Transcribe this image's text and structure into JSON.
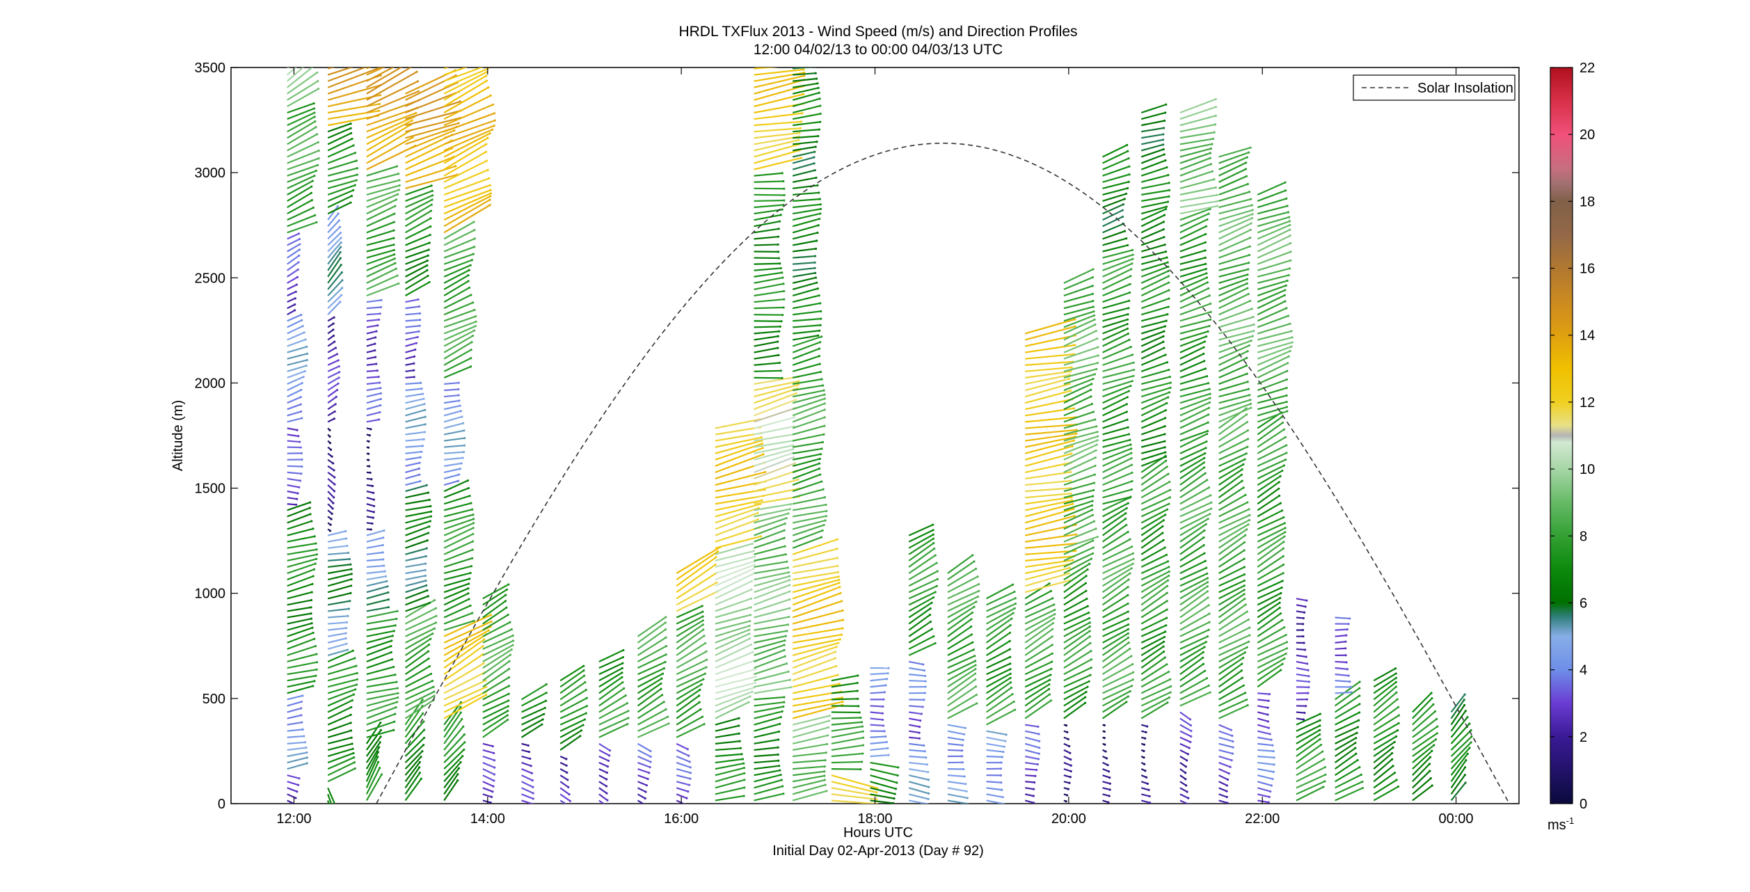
{
  "chart_data": {
    "type": "vector-profile",
    "title": "HRDL TXFlux 2013 - Wind Speed (m/s) and Direction Profiles",
    "subtitle": "12:00 04/02/13 to 00:00 04/03/13  UTC",
    "xlabel": "Hours UTC",
    "ylabel": "Altitude (m)",
    "footer": "Initial Day 02-Apr-2013 (Day # 92)",
    "xlim": [
      11.35,
      24.65
    ],
    "ylim": [
      0,
      3500
    ],
    "x_ticks": [
      {
        "value": 12,
        "label": "12:00"
      },
      {
        "value": 14,
        "label": "14:00"
      },
      {
        "value": 16,
        "label": "16:00"
      },
      {
        "value": 18,
        "label": "18:00"
      },
      {
        "value": 20,
        "label": "20:00"
      },
      {
        "value": 22,
        "label": "22:00"
      },
      {
        "value": 24,
        "label": "00:00"
      }
    ],
    "y_ticks": [
      {
        "value": 0,
        "label": "0"
      },
      {
        "value": 500,
        "label": "500"
      },
      {
        "value": 1000,
        "label": "1000"
      },
      {
        "value": 1500,
        "label": "1500"
      },
      {
        "value": 2000,
        "label": "2000"
      },
      {
        "value": 2500,
        "label": "2500"
      },
      {
        "value": 3000,
        "label": "3000"
      },
      {
        "value": 3500,
        "label": "3500"
      }
    ],
    "legend": {
      "label": "Solar Insolation",
      "placement": "top-right"
    },
    "colorbar": {
      "range": [
        0,
        22
      ],
      "unit_label": "ms",
      "unit_exponent": "-1",
      "ticks": [
        {
          "value": 0,
          "label": "0"
        },
        {
          "value": 2,
          "label": "2"
        },
        {
          "value": 4,
          "label": "4"
        },
        {
          "value": 6,
          "label": "6"
        },
        {
          "value": 8,
          "label": "8"
        },
        {
          "value": 10,
          "label": "10"
        },
        {
          "value": 12,
          "label": "12"
        },
        {
          "value": 14,
          "label": "14"
        },
        {
          "value": 16,
          "label": "16"
        },
        {
          "value": 18,
          "label": "18"
        },
        {
          "value": 20,
          "label": "20"
        },
        {
          "value": 22,
          "label": "22"
        }
      ],
      "stops": [
        {
          "value": 0,
          "color": "#0a0a3c"
        },
        {
          "value": 2,
          "color": "#3a1a96"
        },
        {
          "value": 3,
          "color": "#6a3cd2"
        },
        {
          "value": 4,
          "color": "#6e8ee8"
        },
        {
          "value": 5,
          "color": "#88aee8"
        },
        {
          "value": 5.6,
          "color": "#2e7e78"
        },
        {
          "value": 6,
          "color": "#007000"
        },
        {
          "value": 7,
          "color": "#0c8a0c"
        },
        {
          "value": 8,
          "color": "#33a033"
        },
        {
          "value": 9,
          "color": "#66ba66"
        },
        {
          "value": 10,
          "color": "#a6d6a6"
        },
        {
          "value": 10.8,
          "color": "#d2e8d2"
        },
        {
          "value": 11,
          "color": "#b4b4b4"
        },
        {
          "value": 11.3,
          "color": "#e8e088"
        },
        {
          "value": 12,
          "color": "#f0d020"
        },
        {
          "value": 13,
          "color": "#f0c000"
        },
        {
          "value": 14,
          "color": "#e0a010"
        },
        {
          "value": 15,
          "color": "#cc8a20"
        },
        {
          "value": 16,
          "color": "#b07830"
        },
        {
          "value": 17,
          "color": "#946848"
        },
        {
          "value": 18,
          "color": "#806048"
        },
        {
          "value": 18.5,
          "color": "#a07070"
        },
        {
          "value": 19,
          "color": "#c86e80"
        },
        {
          "value": 20,
          "color": "#f0507a"
        },
        {
          "value": 21,
          "color": "#d83048"
        },
        {
          "value": 22,
          "color": "#b0101e"
        }
      ]
    },
    "solar_insolation": {
      "sunrise_hour": 12.85,
      "sunset_hour": 24.55,
      "peak_altitude": 3140
    },
    "profiles": [
      {
        "time": 11.93,
        "top": 3500,
        "segments": [
          {
            "from": 0,
            "to": 150,
            "speed": 2.5,
            "dir": 110
          },
          {
            "from": 150,
            "to": 500,
            "speed": 4.5,
            "dir": 80
          },
          {
            "from": 500,
            "to": 1400,
            "speed": 7,
            "dir": 75
          },
          {
            "from": 1400,
            "to": 1800,
            "speed": 3,
            "dir": 95
          },
          {
            "from": 1800,
            "to": 2300,
            "speed": 4.5,
            "dir": 70
          },
          {
            "from": 2300,
            "to": 2700,
            "speed": 3,
            "dir": 60
          },
          {
            "from": 2700,
            "to": 3300,
            "speed": 8,
            "dir": 65
          },
          {
            "from": 3300,
            "to": 3500,
            "speed": 10,
            "dir": 55
          }
        ]
      },
      {
        "time": 12.35,
        "top": 3500,
        "segments": [
          {
            "from": 0,
            "to": 80,
            "speed": 6,
            "dir": 160
          },
          {
            "from": 80,
            "to": 700,
            "speed": 7,
            "dir": 70
          },
          {
            "from": 700,
            "to": 1300,
            "speed": 5.5,
            "dir": 80
          },
          {
            "from": 1300,
            "to": 1800,
            "speed": 1.5,
            "dir": 130
          },
          {
            "from": 1800,
            "to": 2300,
            "speed": 2.5,
            "dir": 60
          },
          {
            "from": 2300,
            "to": 2800,
            "speed": 5,
            "dir": 40
          },
          {
            "from": 2800,
            "to": 3200,
            "speed": 7,
            "dir": 70
          },
          {
            "from": 3200,
            "to": 3500,
            "speed": 14,
            "dir": 75
          }
        ]
      },
      {
        "time": 12.75,
        "top": 3500,
        "segments": [
          {
            "from": 0,
            "to": 300,
            "speed": 7,
            "dir": 30
          },
          {
            "from": 300,
            "to": 900,
            "speed": 7.5,
            "dir": 75
          },
          {
            "from": 900,
            "to": 1300,
            "speed": 5,
            "dir": 80
          },
          {
            "from": 1300,
            "to": 1800,
            "speed": 1.2,
            "dir": 100
          },
          {
            "from": 1800,
            "to": 2400,
            "speed": 3,
            "dir": 80
          },
          {
            "from": 2400,
            "to": 3000,
            "speed": 8,
            "dir": 70
          },
          {
            "from": 3000,
            "to": 3500,
            "speed": 14,
            "dir": 65
          }
        ]
      },
      {
        "time": 13.15,
        "top": 3400,
        "segments": [
          {
            "from": 0,
            "to": 400,
            "speed": 7,
            "dir": 40
          },
          {
            "from": 400,
            "to": 900,
            "speed": 8,
            "dir": 60
          },
          {
            "from": 900,
            "to": 1500,
            "speed": 6,
            "dir": 75
          },
          {
            "from": 1500,
            "to": 2000,
            "speed": 4.5,
            "dir": 80
          },
          {
            "from": 2000,
            "to": 2400,
            "speed": 3,
            "dir": 80
          },
          {
            "from": 2400,
            "to": 2900,
            "speed": 7,
            "dir": 65
          },
          {
            "from": 2900,
            "to": 3400,
            "speed": 14,
            "dir": 70
          }
        ]
      },
      {
        "time": 13.55,
        "top": 3500,
        "segments": [
          {
            "from": 0,
            "to": 400,
            "speed": 7,
            "dir": 40
          },
          {
            "from": 400,
            "to": 800,
            "speed": 12.5,
            "dir": 60
          },
          {
            "from": 800,
            "to": 1500,
            "speed": 7.5,
            "dir": 70
          },
          {
            "from": 1500,
            "to": 2000,
            "speed": 4.5,
            "dir": 80
          },
          {
            "from": 2000,
            "to": 2700,
            "speed": 8,
            "dir": 65
          },
          {
            "from": 2700,
            "to": 3500,
            "speed": 13,
            "dir": 65
          }
        ]
      },
      {
        "time": 13.95,
        "top": 1000,
        "segments": [
          {
            "from": 0,
            "to": 300,
            "speed": 2.5,
            "dir": 110
          },
          {
            "from": 300,
            "to": 1000,
            "speed": 8,
            "dir": 60
          }
        ]
      },
      {
        "time": 14.35,
        "top": 500,
        "segments": [
          {
            "from": 0,
            "to": 300,
            "speed": 2.5,
            "dir": 110
          },
          {
            "from": 300,
            "to": 500,
            "speed": 7,
            "dir": 60
          }
        ]
      },
      {
        "time": 14.75,
        "top": 600,
        "segments": [
          {
            "from": 0,
            "to": 250,
            "speed": 2.5,
            "dir": 120
          },
          {
            "from": 250,
            "to": 600,
            "speed": 7,
            "dir": 60
          }
        ]
      },
      {
        "time": 15.15,
        "top": 700,
        "segments": [
          {
            "from": 0,
            "to": 300,
            "speed": 3,
            "dir": 120
          },
          {
            "from": 300,
            "to": 700,
            "speed": 7.5,
            "dir": 60
          }
        ]
      },
      {
        "time": 15.55,
        "top": 800,
        "segments": [
          {
            "from": 0,
            "to": 300,
            "speed": 3,
            "dir": 115
          },
          {
            "from": 300,
            "to": 800,
            "speed": 8,
            "dir": 60
          }
        ]
      },
      {
        "time": 15.95,
        "top": 1100,
        "segments": [
          {
            "from": 0,
            "to": 300,
            "speed": 3,
            "dir": 110
          },
          {
            "from": 300,
            "to": 900,
            "speed": 8,
            "dir": 60
          },
          {
            "from": 900,
            "to": 1100,
            "speed": 12.5,
            "dir": 60
          }
        ]
      },
      {
        "time": 16.35,
        "top": 1800,
        "segments": [
          {
            "from": 0,
            "to": 400,
            "speed": 7,
            "dir": 80
          },
          {
            "from": 400,
            "to": 1200,
            "speed": 10,
            "dir": 70
          },
          {
            "from": 1200,
            "to": 1800,
            "speed": 12.5,
            "dir": 75
          }
        ]
      },
      {
        "time": 16.75,
        "top": 3500,
        "segments": [
          {
            "from": 0,
            "to": 500,
            "speed": 7,
            "dir": 80
          },
          {
            "from": 500,
            "to": 1400,
            "speed": 9,
            "dir": 75
          },
          {
            "from": 1400,
            "to": 2000,
            "speed": 11,
            "dir": 75
          },
          {
            "from": 2000,
            "to": 3000,
            "speed": 7,
            "dir": 85
          },
          {
            "from": 3000,
            "to": 3500,
            "speed": 12.5,
            "dir": 80
          }
        ]
      },
      {
        "time": 17.15,
        "top": 3500,
        "segments": [
          {
            "from": 0,
            "to": 400,
            "speed": 9,
            "dir": 80
          },
          {
            "from": 400,
            "to": 1200,
            "speed": 12.5,
            "dir": 75
          },
          {
            "from": 1200,
            "to": 2200,
            "speed": 8,
            "dir": 75
          },
          {
            "from": 2200,
            "to": 3500,
            "speed": 6.5,
            "dir": 80
          }
        ]
      },
      {
        "time": 17.55,
        "top": 600,
        "segments": [
          {
            "from": 0,
            "to": 150,
            "speed": 12.5,
            "dir": 100
          },
          {
            "from": 150,
            "to": 600,
            "speed": 7.5,
            "dir": 85
          }
        ]
      },
      {
        "time": 17.95,
        "top": 650,
        "segments": [
          {
            "from": 0,
            "to": 200,
            "speed": 6.5,
            "dir": 100
          },
          {
            "from": 200,
            "to": 650,
            "speed": 4,
            "dir": 90
          }
        ]
      },
      {
        "time": 18.35,
        "top": 1300,
        "segments": [
          {
            "from": 0,
            "to": 300,
            "speed": 4.5,
            "dir": 100
          },
          {
            "from": 300,
            "to": 700,
            "speed": 3.5,
            "dir": 95
          },
          {
            "from": 700,
            "to": 1300,
            "speed": 7.5,
            "dir": 60
          }
        ]
      },
      {
        "time": 18.75,
        "top": 1100,
        "segments": [
          {
            "from": 0,
            "to": 400,
            "speed": 4.5,
            "dir": 95
          },
          {
            "from": 400,
            "to": 1100,
            "speed": 8,
            "dir": 60
          }
        ]
      },
      {
        "time": 19.15,
        "top": 1000,
        "segments": [
          {
            "from": 0,
            "to": 350,
            "speed": 4.5,
            "dir": 95
          },
          {
            "from": 350,
            "to": 1000,
            "speed": 7.5,
            "dir": 60
          }
        ]
      },
      {
        "time": 19.55,
        "top": 2250,
        "segments": [
          {
            "from": 0,
            "to": 400,
            "speed": 3,
            "dir": 100
          },
          {
            "from": 400,
            "to": 1000,
            "speed": 8,
            "dir": 60
          },
          {
            "from": 1000,
            "to": 2200,
            "speed": 12.5,
            "dir": 80
          }
        ]
      },
      {
        "time": 19.95,
        "top": 2500,
        "segments": [
          {
            "from": 0,
            "to": 400,
            "speed": 1.2,
            "dir": 110
          },
          {
            "from": 400,
            "to": 1200,
            "speed": 7.5,
            "dir": 60
          },
          {
            "from": 1200,
            "to": 2500,
            "speed": 8.5,
            "dir": 70
          }
        ]
      },
      {
        "time": 20.35,
        "top": 3100,
        "segments": [
          {
            "from": 0,
            "to": 400,
            "speed": 1.2,
            "dir": 110
          },
          {
            "from": 400,
            "to": 1400,
            "speed": 8,
            "dir": 60
          },
          {
            "from": 1400,
            "to": 2600,
            "speed": 7.5,
            "dir": 70
          },
          {
            "from": 2600,
            "to": 3100,
            "speed": 6.5,
            "dir": 70
          }
        ]
      },
      {
        "time": 20.75,
        "top": 3300,
        "segments": [
          {
            "from": 0,
            "to": 400,
            "speed": 1.5,
            "dir": 110
          },
          {
            "from": 400,
            "to": 1600,
            "speed": 7.5,
            "dir": 60
          },
          {
            "from": 1600,
            "to": 2800,
            "speed": 7,
            "dir": 70
          },
          {
            "from": 2800,
            "to": 3300,
            "speed": 6.5,
            "dir": 75
          }
        ]
      },
      {
        "time": 21.15,
        "top": 3300,
        "segments": [
          {
            "from": 0,
            "to": 450,
            "speed": 2.5,
            "dir": 120
          },
          {
            "from": 450,
            "to": 1700,
            "speed": 8,
            "dir": 60
          },
          {
            "from": 1700,
            "to": 2800,
            "speed": 7.5,
            "dir": 70
          },
          {
            "from": 2800,
            "to": 3300,
            "speed": 9,
            "dir": 75
          }
        ]
      },
      {
        "time": 21.55,
        "top": 3100,
        "segments": [
          {
            "from": 0,
            "to": 400,
            "speed": 3,
            "dir": 110
          },
          {
            "from": 400,
            "to": 1800,
            "speed": 8,
            "dir": 60
          },
          {
            "from": 1800,
            "to": 3100,
            "speed": 8.5,
            "dir": 70
          }
        ]
      },
      {
        "time": 21.95,
        "top": 2900,
        "segments": [
          {
            "from": 0,
            "to": 550,
            "speed": 3.5,
            "dir": 100
          },
          {
            "from": 550,
            "to": 1800,
            "speed": 7.5,
            "dir": 60
          },
          {
            "from": 1800,
            "to": 2900,
            "speed": 8.5,
            "dir": 70
          }
        ]
      },
      {
        "time": 22.35,
        "top": 1000,
        "segments": [
          {
            "from": 0,
            "to": 400,
            "speed": 7.5,
            "dir": 60
          },
          {
            "from": 400,
            "to": 1000,
            "speed": 2.5,
            "dir": 95
          }
        ]
      },
      {
        "time": 22.75,
        "top": 900,
        "segments": [
          {
            "from": 0,
            "to": 500,
            "speed": 7,
            "dir": 60
          },
          {
            "from": 500,
            "to": 900,
            "speed": 3.5,
            "dir": 90
          }
        ]
      },
      {
        "time": 23.15,
        "top": 600,
        "segments": [
          {
            "from": 0,
            "to": 600,
            "speed": 7,
            "dir": 55
          }
        ]
      },
      {
        "time": 23.55,
        "top": 450,
        "segments": [
          {
            "from": 0,
            "to": 450,
            "speed": 7,
            "dir": 50
          }
        ]
      },
      {
        "time": 23.95,
        "top": 450,
        "segments": [
          {
            "from": 0,
            "to": 450,
            "speed": 6.5,
            "dir": 40
          }
        ]
      }
    ]
  }
}
